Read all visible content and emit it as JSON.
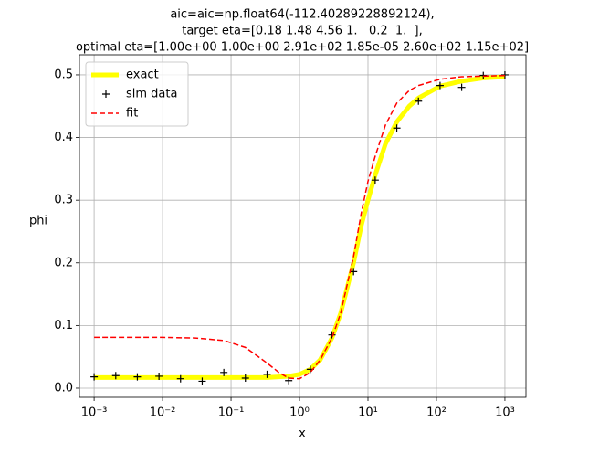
{
  "chart_data": {
    "type": "line",
    "title": [
      "aic=aic=np.float64(-112.40289228892124),",
      "target eta=[0.18 1.48 4.56 1.   0.2  1.  ],",
      "optimal eta=[1.00e+00 1.00e+00 2.91e+02 1.85e-05 2.60e+02 1.15e+02]"
    ],
    "x_label": "x",
    "y_label": "phi",
    "x_scale": "log",
    "xlim": [
      0.00061,
      2030
    ],
    "ylim": [
      -0.0146,
      0.532
    ],
    "xticks": [
      {
        "value": 0.001,
        "label": "10⁻³"
      },
      {
        "value": 0.01,
        "label": "10⁻²"
      },
      {
        "value": 0.1,
        "label": "10⁻¹"
      },
      {
        "value": 1,
        "label": "10⁰"
      },
      {
        "value": 10,
        "label": "10¹"
      },
      {
        "value": 100,
        "label": "10²"
      },
      {
        "value": 1000,
        "label": "10³"
      }
    ],
    "yticks": [
      {
        "value": 0,
        "label": "0.0"
      },
      0.1,
      0.2,
      0.3,
      0.4,
      0.5
    ],
    "grid": true,
    "legend": "upper left",
    "series": [
      {
        "name": "exact",
        "color": "#ffff00",
        "style": "solid",
        "width": 5,
        "x": [
          0.001,
          0.00886,
          0.0785,
          0.336,
          0.695,
          1.0,
          1.438,
          2,
          2.976,
          4,
          6.158,
          8,
          10,
          12.74,
          18,
          26.37,
          40,
          54.56,
          112.9,
          233.6,
          483.3,
          1000
        ],
        "values": [
          0.017,
          0.017,
          0.017,
          0.017,
          0.019,
          0.022,
          0.03,
          0.045,
          0.08,
          0.12,
          0.2,
          0.26,
          0.3,
          0.34,
          0.39,
          0.425,
          0.45,
          0.463,
          0.482,
          0.49,
          0.495,
          0.497
        ]
      },
      {
        "name": "sim data",
        "color": "#000000",
        "style": "marker",
        "x": [
          0.001,
          0.00207,
          0.00428,
          0.00886,
          0.0183,
          0.0379,
          0.0785,
          0.162,
          0.336,
          0.695,
          1.438,
          2.976,
          6.158,
          12.74,
          26.37,
          54.56,
          112.9,
          233.6,
          483.3,
          1000
        ],
        "values": [
          0.018,
          0.02,
          0.018,
          0.019,
          0.015,
          0.011,
          0.025,
          0.016,
          0.022,
          0.012,
          0.03,
          0.085,
          0.186,
          0.332,
          0.415,
          0.458,
          0.483,
          0.48,
          0.499,
          0.5
        ]
      },
      {
        "name": "fit",
        "color": "#ff0000",
        "style": "dashed",
        "width": 1.5,
        "x": [
          0.001,
          0.01,
          0.03,
          0.0785,
          0.162,
          0.336,
          0.5,
          0.695,
          1.0,
          1.438,
          2,
          2.976,
          4,
          6.158,
          8,
          10,
          12.74,
          18,
          26.37,
          40,
          54.56,
          112.9,
          233.6,
          1000
        ],
        "values": [
          0.081,
          0.081,
          0.08,
          0.076,
          0.065,
          0.04,
          0.025,
          0.016,
          0.015,
          0.025,
          0.045,
          0.08,
          0.12,
          0.21,
          0.28,
          0.33,
          0.37,
          0.42,
          0.455,
          0.475,
          0.483,
          0.493,
          0.497,
          0.499
        ]
      }
    ]
  }
}
